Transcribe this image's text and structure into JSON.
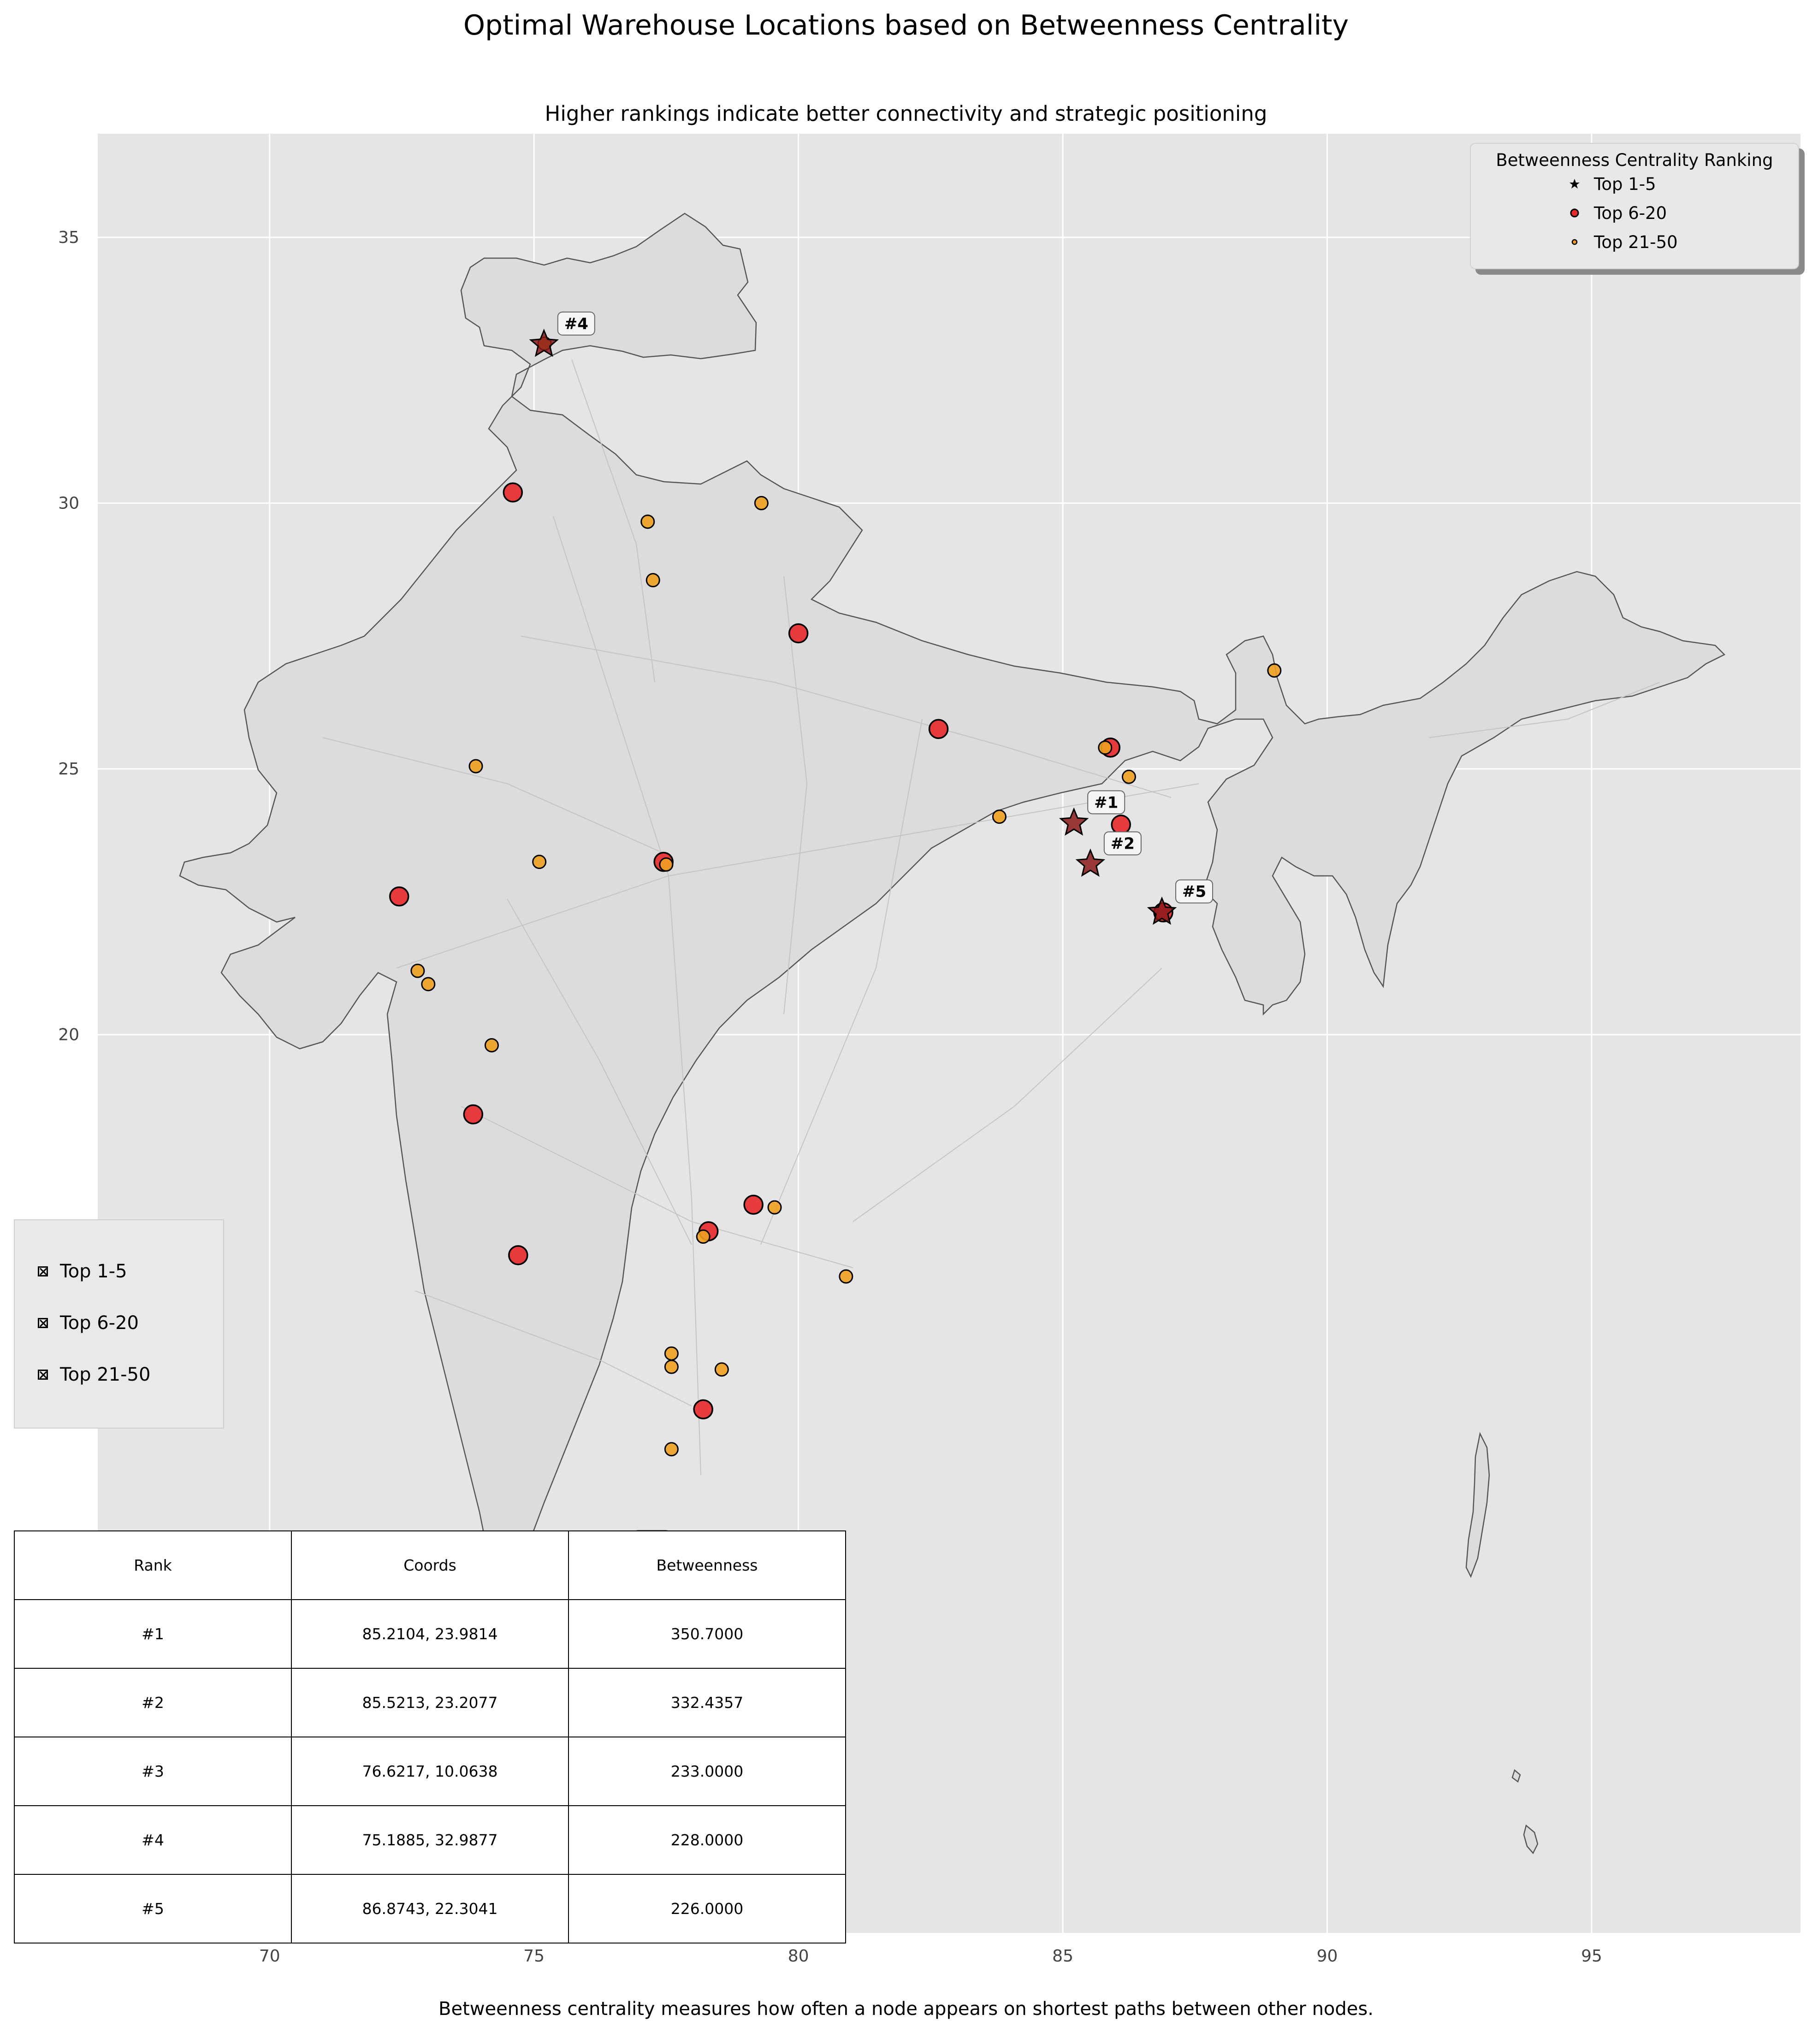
{
  "title": "Optimal Warehouse Locations based on Betweenness Centrality",
  "subtitle": "Higher rankings indicate better connectivity and strategic positioning",
  "footnote": "Betweenness centrality measures how often a node appears on shortest paths between other nodes.",
  "colors": {
    "plot_bg": "#e5e5e5",
    "land": "#dcdcdc",
    "border": "#555555",
    "road": "#c4c4c4",
    "grid": "#ffffff",
    "top_1_5": "#8b1a1a",
    "top_6_20": "#e8282a",
    "top_21_50": "#f0a020"
  },
  "legend": {
    "title": "Betweenness Centrality Ranking",
    "items": [
      "Top 1-5",
      "Top 6-20",
      "Top 21-50"
    ]
  },
  "side_legend": {
    "items": [
      "Top 1-5",
      "Top 6-20",
      "Top 21-50"
    ]
  },
  "table": {
    "headers": [
      "Rank",
      "Coords",
      "Betweenness"
    ],
    "rows": [
      [
        "#1",
        "85.2104, 23.9814",
        "350.7000"
      ],
      [
        "#2",
        "85.5213, 23.2077",
        "332.4357"
      ],
      [
        "#3",
        "76.6217, 10.0638",
        "233.0000"
      ],
      [
        "#4",
        "75.1885, 32.9877",
        "228.0000"
      ],
      [
        "#5",
        "86.8743, 22.3041",
        "226.0000"
      ]
    ]
  },
  "chart_data": {
    "type": "scatter",
    "title": "Optimal Warehouse Locations based on Betweenness Centrality",
    "subtitle": "Higher rankings indicate better connectivity and strategic positioning",
    "xlim": [
      66.75,
      98.95
    ],
    "ylim": [
      3.1,
      36.95
    ],
    "x_ticks": [
      70,
      75,
      80,
      85,
      90,
      95
    ],
    "y_ticks": [
      20,
      25,
      30,
      35
    ],
    "grid": true,
    "legend_position": "top-right",
    "series": [
      {
        "name": "Top 1-5",
        "marker": "star",
        "points": [
          {
            "x": 85.2104,
            "y": 23.9814,
            "label": "#1"
          },
          {
            "x": 85.5213,
            "y": 23.2077,
            "label": "#2"
          },
          {
            "x": 76.6217,
            "y": 10.0638,
            "label": "#3"
          },
          {
            "x": 75.1885,
            "y": 32.9877,
            "label": "#4"
          },
          {
            "x": 86.8743,
            "y": 22.3041,
            "label": "#5"
          }
        ]
      },
      {
        "name": "Top 6-20",
        "marker": "circle-large",
        "points": [
          {
            "x": 74.6,
            "y": 30.2
          },
          {
            "x": 80.0,
            "y": 27.55
          },
          {
            "x": 82.65,
            "y": 25.75
          },
          {
            "x": 85.9,
            "y": 25.4
          },
          {
            "x": 86.1,
            "y": 23.95
          },
          {
            "x": 77.45,
            "y": 23.25
          },
          {
            "x": 72.45,
            "y": 22.6
          },
          {
            "x": 86.9,
            "y": 22.3
          },
          {
            "x": 73.85,
            "y": 18.5
          },
          {
            "x": 74.7,
            "y": 15.85
          },
          {
            "x": 79.15,
            "y": 16.8
          },
          {
            "x": 78.3,
            "y": 16.3
          },
          {
            "x": 78.2,
            "y": 12.95
          }
        ]
      },
      {
        "name": "Top 21-50",
        "marker": "circle-small",
        "points": [
          {
            "x": 79.3,
            "y": 30.0
          },
          {
            "x": 77.15,
            "y": 29.65
          },
          {
            "x": 77.25,
            "y": 28.55
          },
          {
            "x": 89.0,
            "y": 26.85
          },
          {
            "x": 85.8,
            "y": 25.4
          },
          {
            "x": 86.25,
            "y": 24.85
          },
          {
            "x": 73.9,
            "y": 25.05
          },
          {
            "x": 83.8,
            "y": 24.1
          },
          {
            "x": 75.1,
            "y": 23.25
          },
          {
            "x": 77.5,
            "y": 23.2
          },
          {
            "x": 75.2,
            "y": 33.0
          },
          {
            "x": 72.8,
            "y": 21.2
          },
          {
            "x": 73.0,
            "y": 20.95
          },
          {
            "x": 74.2,
            "y": 19.8
          },
          {
            "x": 79.55,
            "y": 16.75
          },
          {
            "x": 78.2,
            "y": 16.2
          },
          {
            "x": 80.9,
            "y": 15.45
          },
          {
            "x": 77.6,
            "y": 14.0
          },
          {
            "x": 77.6,
            "y": 13.75
          },
          {
            "x": 78.55,
            "y": 13.7
          },
          {
            "x": 77.6,
            "y": 12.2
          }
        ]
      }
    ]
  }
}
